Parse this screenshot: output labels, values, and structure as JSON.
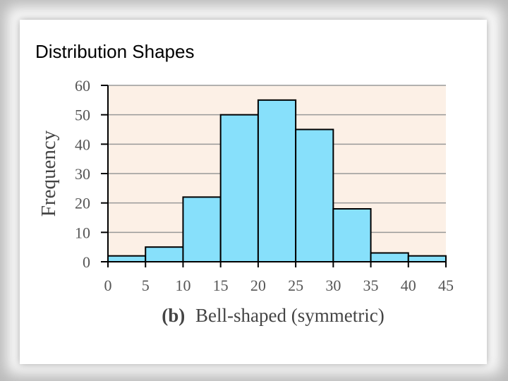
{
  "slide": {
    "title": "Distribution Shapes"
  },
  "chart_data": {
    "type": "bar",
    "histogram": true,
    "bin_edges": [
      0,
      5,
      10,
      15,
      20,
      25,
      30,
      35,
      40,
      45
    ],
    "values": [
      2,
      5,
      22,
      50,
      55,
      45,
      18,
      3,
      2
    ],
    "x_ticks": [
      "0",
      "5",
      "10",
      "15",
      "20",
      "25",
      "30",
      "35",
      "40",
      "45"
    ],
    "y_ticks": [
      "0",
      "10",
      "20",
      "30",
      "40",
      "50",
      "60"
    ],
    "ylabel": "Frequency",
    "caption_bold": "(b)",
    "caption_text": "Bell-shaped (symmetric)",
    "xlim": [
      0,
      45
    ],
    "ylim": [
      0,
      60
    ],
    "grid": true,
    "colors": {
      "bar_fill": "#87E0FB",
      "plot_background": "#FCF0E6",
      "gridline": "#999999"
    }
  }
}
